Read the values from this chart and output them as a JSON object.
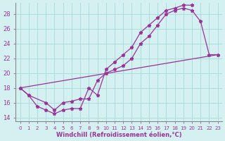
{
  "xlabel": "Windchill (Refroidissement éolien,°C)",
  "background_color": "#d4f0f0",
  "line_color": "#993399",
  "grid_color": "#aadddd",
  "xlim": [
    -0.5,
    23.5
  ],
  "ylim": [
    13.5,
    29.5
  ],
  "xticks": [
    0,
    1,
    2,
    3,
    4,
    5,
    6,
    7,
    8,
    9,
    10,
    11,
    12,
    13,
    14,
    15,
    16,
    17,
    18,
    19,
    20,
    21,
    22,
    23
  ],
  "yticks": [
    14,
    16,
    18,
    20,
    22,
    24,
    26,
    28
  ],
  "line1_x": [
    0,
    1,
    2,
    3,
    4,
    5,
    6,
    7,
    8,
    9,
    10,
    11,
    12,
    13,
    14,
    15,
    16,
    17,
    18,
    19,
    20
  ],
  "line1_y": [
    18,
    17,
    15.5,
    15,
    14.5,
    15,
    15.2,
    15.2,
    18,
    17,
    20.5,
    21.5,
    22.5,
    23.5,
    25.5,
    26.5,
    27.5,
    28.5,
    28.8,
    29.2,
    29.2
  ],
  "line2_x": [
    0,
    1,
    3,
    4,
    5,
    6,
    7,
    8,
    9,
    10,
    11,
    12,
    13,
    14,
    15,
    16,
    17,
    18,
    19,
    20,
    21,
    22,
    23
  ],
  "line2_y": [
    18,
    17,
    16,
    15,
    16,
    16.2,
    16.5,
    16.5,
    19,
    20,
    20.5,
    21,
    22,
    24,
    25,
    26.5,
    28,
    28.5,
    28.8,
    28.5,
    27,
    22.5,
    22.5
  ],
  "line3_x": [
    0,
    23
  ],
  "line3_y": [
    18,
    22.5
  ]
}
